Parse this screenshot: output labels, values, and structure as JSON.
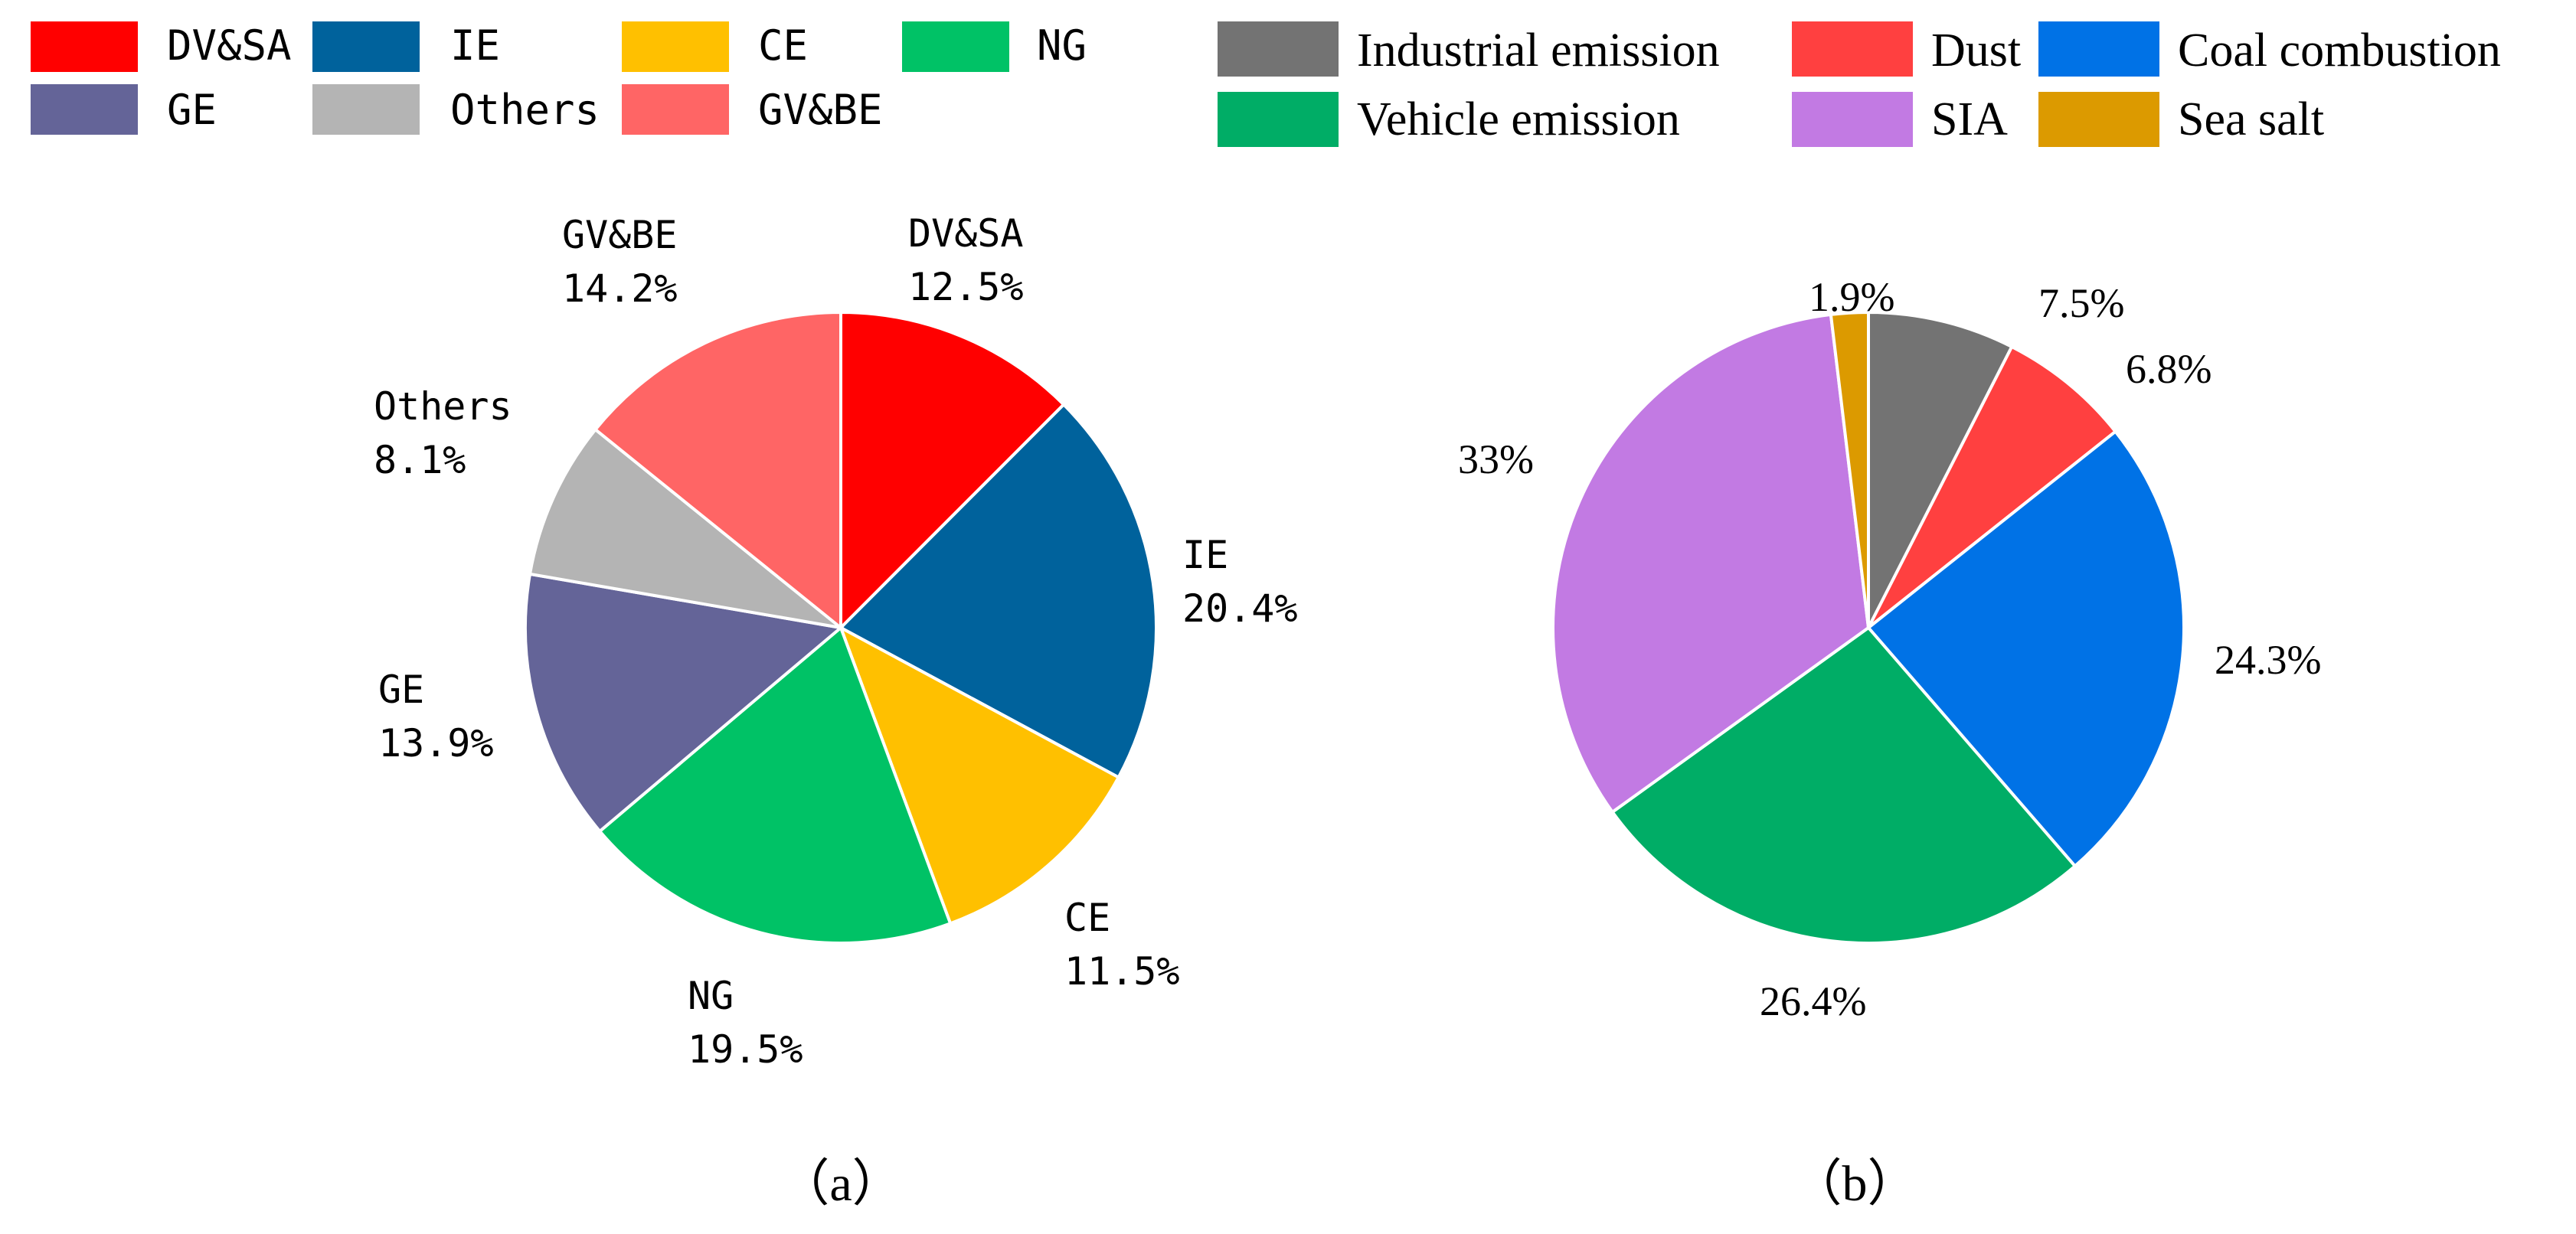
{
  "chart_data": [
    {
      "type": "pie",
      "caption": "（a）",
      "slices": [
        {
          "name": "DV&SA",
          "value": 12.5,
          "label": "12.5%",
          "color": "#ff0000"
        },
        {
          "name": "IE",
          "value": 20.4,
          "label": "20.4%",
          "color": "#00629c"
        },
        {
          "name": "CE",
          "value": 11.5,
          "label": "11.5%",
          "color": "#ffc000"
        },
        {
          "name": "NG",
          "value": 19.5,
          "label": "19.5%",
          "color": "#00c266"
        },
        {
          "name": "GE",
          "value": 13.9,
          "label": "13.9%",
          "color": "#646498"
        },
        {
          "name": "Others",
          "value": 8.1,
          "label": "8.1%",
          "color": "#b4b4b4"
        },
        {
          "name": "GV&BE",
          "value": 14.2,
          "label": "14.2%",
          "color": "#ff6565"
        }
      ]
    },
    {
      "type": "pie",
      "caption": "（b）",
      "slices": [
        {
          "name": "Industrial emission",
          "value": 7.5,
          "label": "7.5%",
          "color": "#737373"
        },
        {
          "name": "Dust",
          "value": 6.8,
          "label": "6.8%",
          "color": "#ff4040"
        },
        {
          "name": "Coal combustion",
          "value": 24.3,
          "label": "24.3%",
          "color": "#0072e6"
        },
        {
          "name": "Vehicle emission",
          "value": 26.4,
          "label": "26.4%",
          "color": "#00ad66"
        },
        {
          "name": "SIA",
          "value": 33.0,
          "label": "33%",
          "color": "#c27ae3"
        },
        {
          "name": "Sea salt",
          "value": 1.9,
          "label": "1.9%",
          "color": "#dc9a00"
        }
      ]
    }
  ]
}
